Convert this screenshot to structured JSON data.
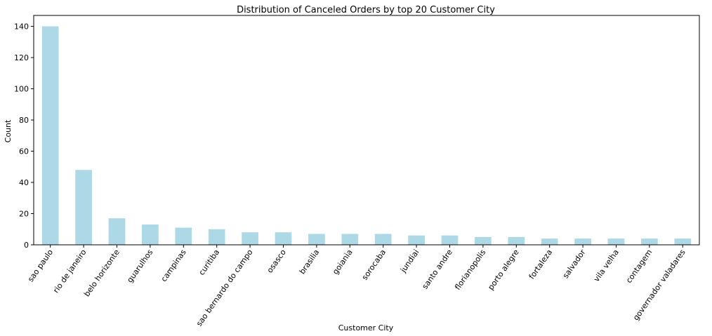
{
  "chart_data": {
    "type": "bar",
    "title": "Distribution of Canceled Orders by top 20 Customer City",
    "xlabel": "Customer City",
    "ylabel": "Count",
    "ylim": [
      0,
      147
    ],
    "yticks": [
      0,
      20,
      40,
      60,
      80,
      100,
      120,
      140
    ],
    "grid": false,
    "bar_color": "#add8e6",
    "categories": [
      "sao paulo",
      "rio de janeiro",
      "belo horizonte",
      "guarulhos",
      "campinas",
      "curitiba",
      "sao bernardo do campo",
      "osasco",
      "brasilia",
      "goiania",
      "sorocaba",
      "jundiai",
      "santo andre",
      "florianopolis",
      "porto alegre",
      "fortaleza",
      "salvador",
      "vila velha",
      "contagem",
      "governador valadares"
    ],
    "values": [
      140,
      48,
      17,
      13,
      11,
      10,
      8,
      8,
      7,
      7,
      7,
      6,
      6,
      5,
      5,
      4,
      4,
      4,
      4,
      4
    ]
  }
}
